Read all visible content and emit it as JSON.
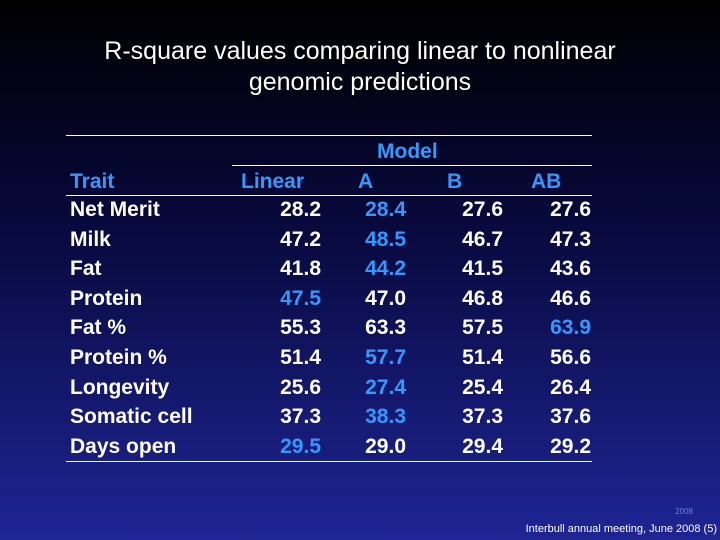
{
  "title": {
    "line1": "R-square values comparing linear to nonlinear",
    "line2": "genomic predictions"
  },
  "table": {
    "group_header": "Model",
    "columns": [
      "Trait",
      "Linear",
      "A",
      "B",
      "AB"
    ],
    "rows": [
      {
        "trait": "Net Merit",
        "values": [
          "28.2",
          "28.4",
          "27.6",
          "27.6"
        ],
        "highlight": [
          false,
          true,
          false,
          false
        ]
      },
      {
        "trait": "Milk",
        "values": [
          "47.2",
          "48.5",
          "46.7",
          "47.3"
        ],
        "highlight": [
          false,
          true,
          false,
          false
        ]
      },
      {
        "trait": "Fat",
        "values": [
          "41.8",
          "44.2",
          "41.5",
          "43.6"
        ],
        "highlight": [
          false,
          true,
          false,
          false
        ]
      },
      {
        "trait": "Protein",
        "values": [
          "47.5",
          "47.0",
          "46.8",
          "46.6"
        ],
        "highlight": [
          true,
          false,
          false,
          false
        ]
      },
      {
        "trait": "Fat %",
        "values": [
          "55.3",
          "63.3",
          "57.5",
          "63.9"
        ],
        "highlight": [
          false,
          false,
          false,
          true
        ]
      },
      {
        "trait": "Protein %",
        "values": [
          "51.4",
          "57.7",
          "51.4",
          "56.6"
        ],
        "highlight": [
          false,
          true,
          false,
          false
        ]
      },
      {
        "trait": "Longevity",
        "values": [
          "25.6",
          "27.4",
          "25.4",
          "26.4"
        ],
        "highlight": [
          false,
          true,
          false,
          false
        ]
      },
      {
        "trait": "Somatic cell",
        "values": [
          "37.3",
          "38.3",
          "37.3",
          "37.6"
        ],
        "highlight": [
          false,
          true,
          false,
          false
        ]
      },
      {
        "trait": "Days open",
        "values": [
          "29.5",
          "29.0",
          "29.4",
          "29.2"
        ],
        "highlight": [
          true,
          false,
          false,
          false
        ]
      }
    ]
  },
  "footer": {
    "tag": "2008",
    "text": "Interbull annual meeting, June 2008 (5)"
  },
  "colors": {
    "highlight": "#3399ff",
    "text": "#ffffff"
  }
}
